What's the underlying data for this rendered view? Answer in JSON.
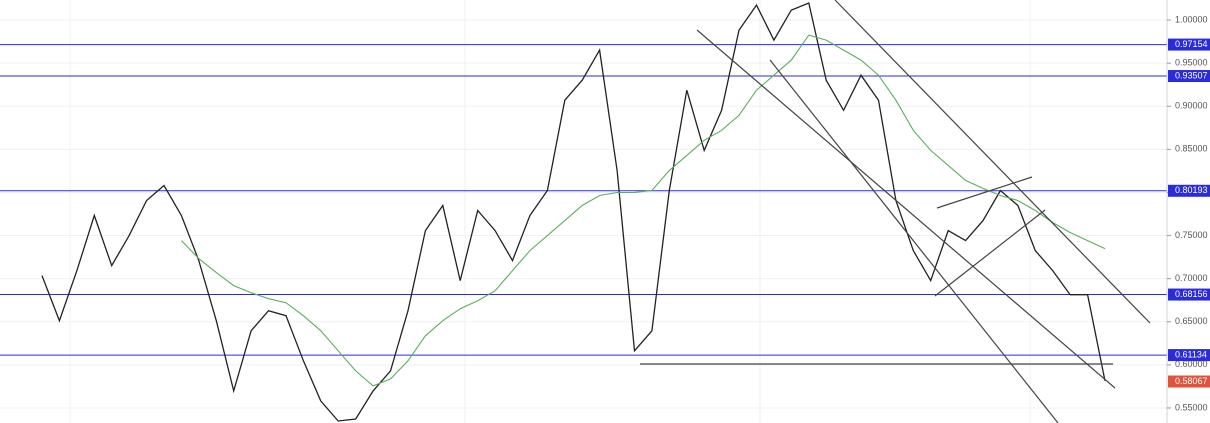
{
  "chart_data": {
    "type": "line",
    "categories": [
      null,
      null,
      null,
      null,
      null,
      null,
      null,
      null,
      null,
      null,
      null,
      null,
      null,
      null,
      null,
      null,
      null,
      null,
      null,
      null,
      null,
      null,
      null,
      null,
      null,
      null,
      null,
      null,
      null,
      null,
      null,
      null,
      null,
      null,
      null,
      null,
      null,
      null,
      null,
      null,
      null,
      null,
      null,
      null,
      null,
      null,
      null,
      null,
      null,
      null,
      null,
      null,
      null,
      null,
      null,
      null,
      null,
      null,
      null,
      null,
      null,
      null
    ],
    "series": [
      {
        "color": "#222222",
        "values": [
          0.7035,
          0.6512,
          0.7093,
          0.7733,
          0.7151,
          0.75,
          0.7907,
          0.8081,
          0.7733,
          0.7209,
          0.6512,
          0.5698,
          0.6395,
          0.6628,
          0.657,
          0.6047,
          0.5581,
          0.5349,
          0.5372,
          0.5698,
          0.593,
          0.6628,
          0.7558,
          0.7849,
          0.6977,
          0.7791,
          0.7558,
          0.7209,
          0.7733,
          0.8023,
          0.907,
          0.9302,
          0.9651,
          0.8256,
          0.6163,
          0.6395,
          0.8023,
          0.9186,
          0.8488,
          0.8953,
          0.9884,
          1.0174,
          0.9767,
          1.0116,
          1.0198,
          0.9302,
          0.8953,
          0.936,
          0.907,
          0.7907,
          0.7326,
          0.6977,
          0.7558,
          0.7442,
          0.7674,
          0.8023,
          0.7849,
          0.7326,
          0.7093,
          0.6814,
          0.6814,
          0.5814
        ]
      },
      {
        "color": "#5cae5c",
        "values": [
          null,
          null,
          null,
          null,
          null,
          null,
          null,
          null,
          0.7442,
          0.7233,
          0.707,
          0.6919,
          0.6837,
          0.6768,
          0.6721,
          0.657,
          0.6395,
          0.6163,
          0.593,
          0.5756,
          0.5837,
          0.6047,
          0.6337,
          0.6512,
          0.6651,
          0.6744,
          0.686,
          0.7093,
          0.7326,
          0.75,
          0.7674,
          0.7849,
          0.7965,
          0.8,
          0.8,
          0.8023,
          0.8256,
          0.843,
          0.8605,
          0.8721,
          0.8895,
          0.9186,
          0.936,
          0.9535,
          0.9826,
          0.9767,
          0.9651,
          0.9535,
          0.936,
          0.907,
          0.8721,
          0.8488,
          0.8314,
          0.814,
          0.8047,
          0.7965,
          0.7907,
          0.7791,
          0.7651,
          0.7535,
          0.7442,
          0.7349
        ]
      }
    ],
    "ylim": [
      0.53256,
      1.02326
    ],
    "yticks": [
      {
        "value": 1.0,
        "label": "1.00000"
      },
      {
        "value": 0.95,
        "label": "0.95000"
      },
      {
        "value": 0.9,
        "label": "0.90000"
      },
      {
        "value": 0.85,
        "label": "0.85000"
      },
      {
        "value": 0.8,
        "label": "0.80000"
      },
      {
        "value": 0.75,
        "label": "0.75000"
      },
      {
        "value": 0.7,
        "label": "0.70000"
      },
      {
        "value": 0.65,
        "label": "0.65000"
      },
      {
        "value": 0.6,
        "label": "0.60000"
      },
      {
        "value": 0.55,
        "label": "0.55000"
      }
    ],
    "grid": true,
    "levels": [
      {
        "value": 0.97154,
        "color": "#2b2bdc"
      },
      {
        "value": 0.93507,
        "color": "#2b2bdc"
      },
      {
        "value": 0.80193,
        "color": "#2b2bdc"
      },
      {
        "value": 0.68156,
        "color": "#2b2bdc"
      },
      {
        "value": 0.61134,
        "color": "#2b2bdc"
      }
    ],
    "price_label": {
      "value": 0.58067,
      "color": "#e1533b"
    }
  }
}
